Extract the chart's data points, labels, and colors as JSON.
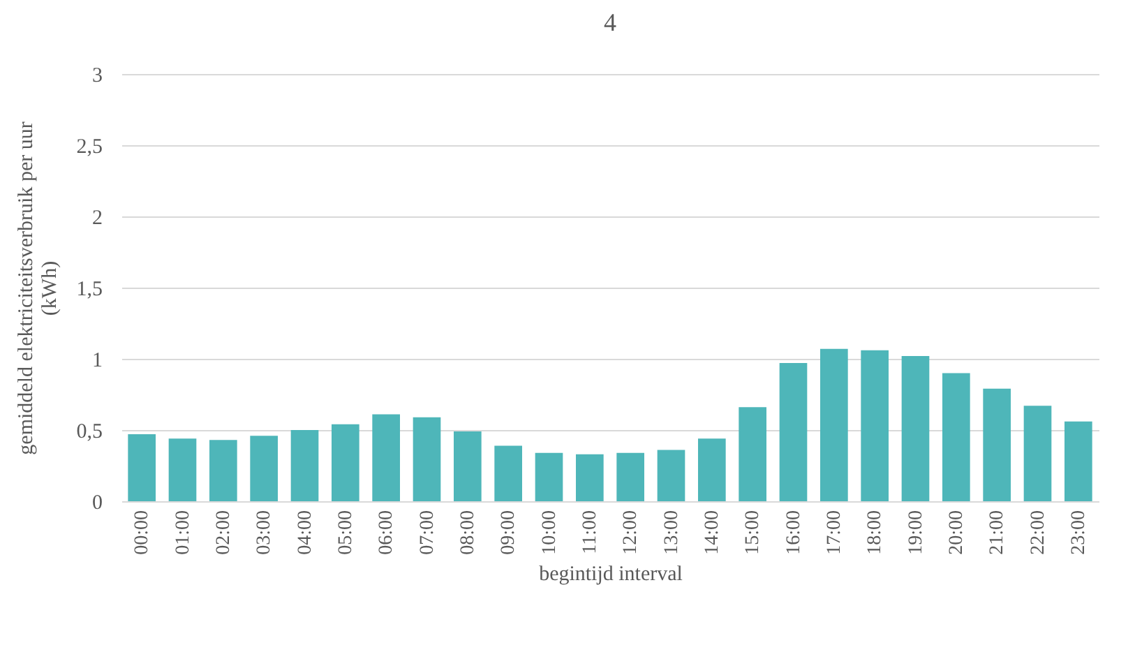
{
  "chart_data": {
    "type": "bar",
    "title": "4",
    "xlabel": "begintijd interval",
    "ylabel": "gemiddeld elektriciteitsverbruik per uur (kWh)",
    "categories": [
      "00:00",
      "01:00",
      "02:00",
      "03:00",
      "04:00",
      "05:00",
      "06:00",
      "07:00",
      "08:00",
      "09:00",
      "10:00",
      "11:00",
      "12:00",
      "13:00",
      "14:00",
      "15:00",
      "16:00",
      "17:00",
      "18:00",
      "19:00",
      "20:00",
      "21:00",
      "22:00",
      "23:00"
    ],
    "values": [
      0.47,
      0.44,
      0.43,
      0.46,
      0.5,
      0.54,
      0.61,
      0.59,
      0.49,
      0.39,
      0.34,
      0.33,
      0.34,
      0.36,
      0.44,
      0.66,
      0.97,
      1.07,
      1.06,
      1.02,
      0.9,
      0.79,
      0.67,
      0.56
    ],
    "color": "#4eb6b9",
    "ylim": [
      0,
      3
    ],
    "yticks": [
      {
        "value": 0,
        "label": "0"
      },
      {
        "value": 0.5,
        "label": "0,5"
      },
      {
        "value": 1,
        "label": "1"
      },
      {
        "value": 1.5,
        "label": "1,5"
      },
      {
        "value": 2,
        "label": "2"
      },
      {
        "value": 2.5,
        "label": "2,5"
      },
      {
        "value": 3,
        "label": "3"
      }
    ],
    "grid": true
  }
}
